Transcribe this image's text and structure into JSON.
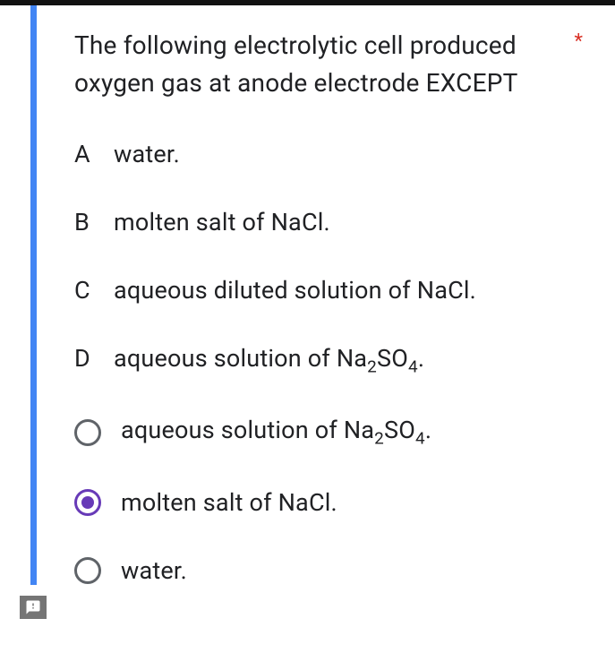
{
  "question": {
    "text": "The following electrolytic cell produced oxygen gas at anode electrode EXCEPT",
    "required_marker": "*"
  },
  "statements": [
    {
      "letter": "A",
      "text": "water."
    },
    {
      "letter": "B",
      "text": "molten salt of NaCl."
    },
    {
      "letter": "C",
      "text": "aqueous diluted solution of NaCl."
    },
    {
      "letter": "D",
      "text_html": "aqueous solution of Na<sub class=\"sub\">2</sub>SO<sub class=\"sub\">4</sub>."
    }
  ],
  "choices": [
    {
      "label_html": "aqueous solution of Na<sub class=\"sub\">2</sub>SO<sub class=\"sub\">4</sub>.",
      "selected": false
    },
    {
      "label": "molten salt of NaCl.",
      "selected": true
    },
    {
      "label": "water.",
      "selected": false
    }
  ],
  "colors": {
    "accent": "#673ab7",
    "card_border": "#4285f4",
    "required": "#d93025",
    "radio_unselected": "#5f6368",
    "text": "#202124",
    "report_bg": "#757575"
  }
}
